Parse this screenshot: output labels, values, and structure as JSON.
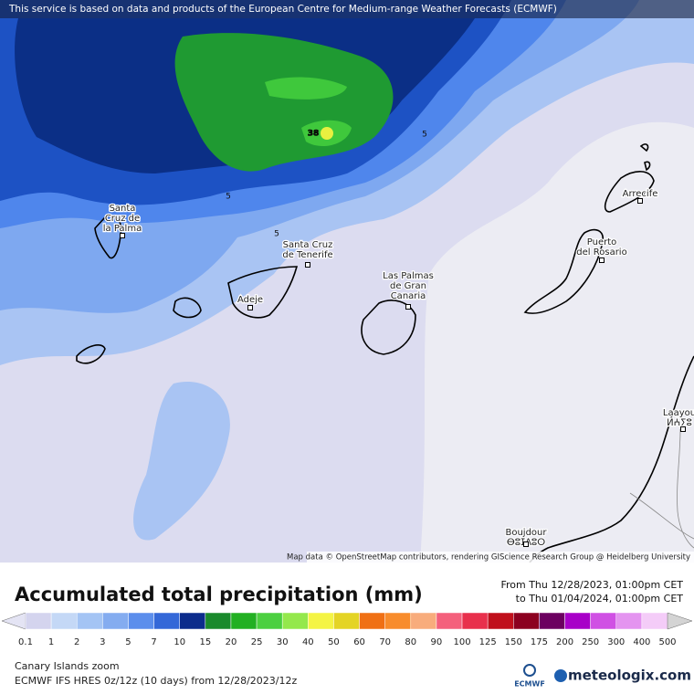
{
  "header": {
    "notice": "This service is based on data and products of the European Centre for Medium-range Weather Forecasts (ECMWF)"
  },
  "map": {
    "attribution": "Map data © OpenStreetMap contributors, rendering GIScience Research Group @ Heidelberg University",
    "places": [
      {
        "lines": [
          "Santa",
          "Cruz de",
          "la Palma"
        ]
      },
      {
        "lines": [
          "Santa Cruz",
          "de Tenerife"
        ]
      },
      {
        "lines": [
          "Adeje"
        ]
      },
      {
        "lines": [
          "Las Palmas",
          "de Gran",
          "Canaria"
        ]
      },
      {
        "lines": [
          "Puerto",
          "del Rosario"
        ]
      },
      {
        "lines": [
          "Arrecife"
        ]
      },
      {
        "lines": [
          "Laayou",
          "ⵍⵄⵢⵓ"
        ]
      },
      {
        "lines": [
          "Boujdour",
          "ⴱⵓⵊⴷⵓⵔ"
        ]
      }
    ],
    "contour_labels": [
      "5",
      "5",
      "5",
      "38"
    ]
  },
  "legend": {
    "title": "Accumulated total precipitation (mm)",
    "period_from": "From Thu 12/28/2023, 01:00pm CET",
    "period_to": "to Thu 01/04/2024, 01:00pm CET",
    "labels": [
      "0.1",
      "1",
      "2",
      "3",
      "5",
      "7",
      "10",
      "15",
      "20",
      "25",
      "30",
      "40",
      "50",
      "60",
      "70",
      "80",
      "90",
      "100",
      "125",
      "150",
      "175",
      "200",
      "250",
      "300",
      "400",
      "500"
    ],
    "colors": [
      "#e4e4f4",
      "#d4d4ee",
      "#c4d8f6",
      "#a4c4f4",
      "#84acf0",
      "#5c8eec",
      "#3468d8",
      "#0c2c8c",
      "#1a8a2c",
      "#22b022",
      "#4cd040",
      "#94e84c",
      "#f4f444",
      "#e4d424",
      "#f07014",
      "#f88c2c",
      "#f8ac7c",
      "#f4607c",
      "#e8304c",
      "#c0101c",
      "#8c0020",
      "#6c0060",
      "#a800c8",
      "#d050e4",
      "#e494f0",
      "#f4ccf8",
      "#d4d4d4"
    ]
  },
  "footer": {
    "region": "Canary Islands zoom",
    "model": "ECMWF IFS HRES 0z/12z (10 days) from  12/28/2023/12z",
    "ecmwf": "ECMWF",
    "brand": "meteologix.com"
  }
}
